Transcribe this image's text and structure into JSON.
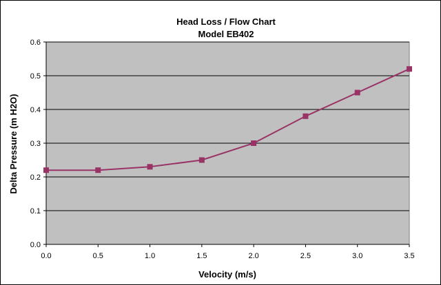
{
  "chart_data": {
    "type": "line",
    "title": "Head Loss / Flow Chart",
    "subtitle": "Model EB402",
    "xlabel": "Velocity (m/s)",
    "ylabel": "Delta Pressure (m H2O)",
    "xlim": [
      0,
      3.5
    ],
    "ylim": [
      0,
      0.6
    ],
    "x_ticks": [
      "0.0",
      "0.5",
      "1.0",
      "1.5",
      "2.0",
      "2.5",
      "3.0",
      "3.5"
    ],
    "y_ticks": [
      "0.0",
      "0.1",
      "0.2",
      "0.3",
      "0.4",
      "0.5",
      "0.6"
    ],
    "grid": true,
    "legend": "none",
    "series": [
      {
        "x": [
          0.0,
          0.5,
          1.0,
          1.5,
          2.0,
          2.5,
          3.0,
          3.5
        ],
        "values": [
          0.22,
          0.22,
          0.23,
          0.25,
          0.3,
          0.38,
          0.45,
          0.52
        ],
        "color": "#993366",
        "marker": "square"
      }
    ],
    "plot_background": "#c0c0c0"
  }
}
